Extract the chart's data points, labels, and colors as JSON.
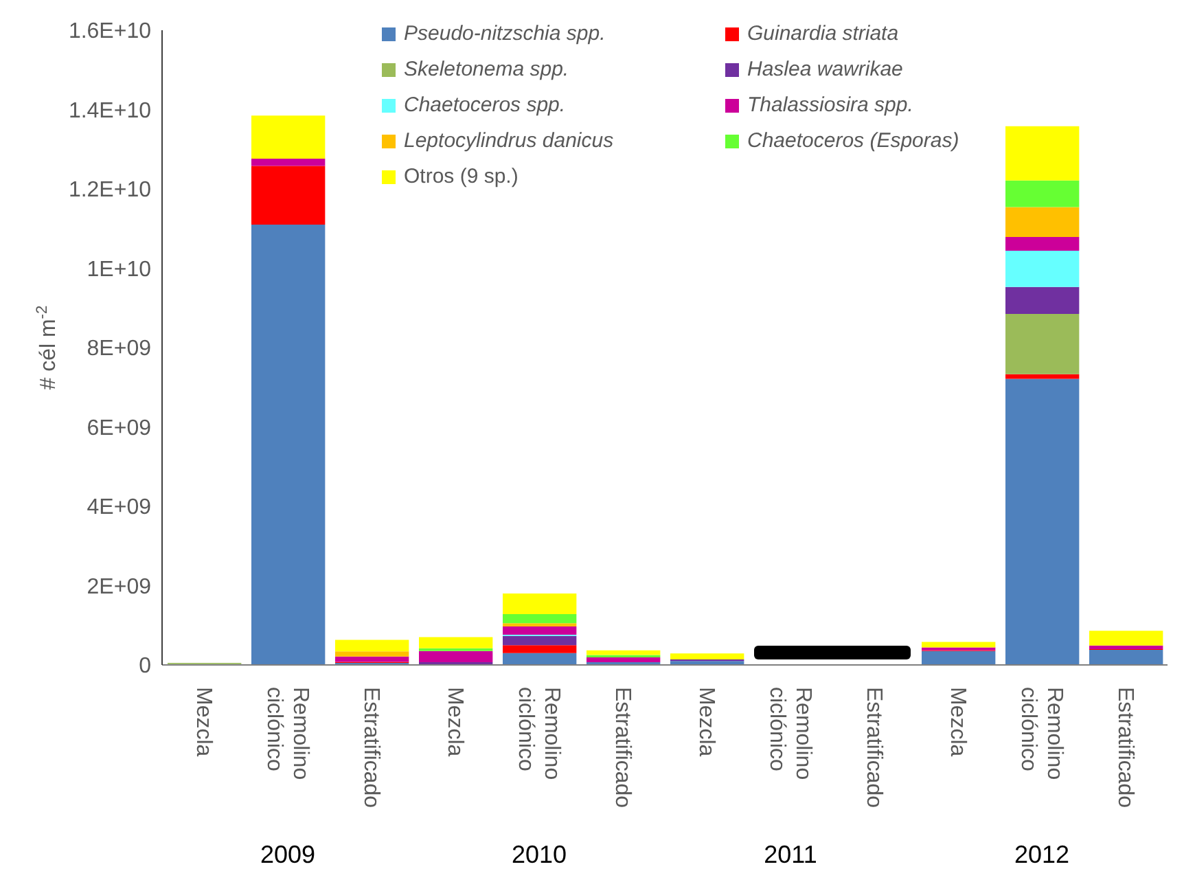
{
  "chart_data": {
    "type": "bar",
    "stacked": true,
    "ylabel": "# cél m$^{-2}$",
    "categories": [
      "Mezcla",
      "Remolino ciclónico",
      "Estratificado",
      "Mezcla",
      "Remolino ciclónico",
      "Estratificado",
      "Mezcla",
      "Remolino ciclónico",
      "Estratificado",
      "Mezcla",
      "Remolino ciclónico",
      "Estratificado"
    ],
    "annotations": [
      "2009",
      "2010",
      "2011",
      "2012"
    ],
    "ylim": [
      0,
      16000000000.0
    ],
    "yticks": [
      0,
      {
        "value": 2000000000.0,
        "label": "2E+09"
      },
      {
        "value": 4000000000.0,
        "label": "4E+09"
      },
      {
        "value": 6000000000.0,
        "label": "6E+09"
      },
      {
        "value": 8000000000.0,
        "label": "8E+09"
      },
      {
        "value": 10000000000.0,
        "label": "1E+10"
      },
      {
        "value": 12000000000.0,
        "label": "1.2E+10"
      },
      {
        "value": 14000000000.0,
        "label": "1.4E+10"
      },
      {
        "value": 16000000000.0,
        "label": "1.6E+10"
      }
    ],
    "grid": false,
    "legend": "top",
    "series": [
      {
        "name": "Pseudo-nitzschia spp.",
        "color": "#4f81bd",
        "values": [
          20000000.0,
          11100000000.0,
          50000000.0,
          0,
          300000000.0,
          70000000.0,
          100000000.0,
          null,
          null,
          350000000.0,
          7210000000.0,
          380000000.0
        ]
      },
      {
        "name": "Guinardia striata",
        "color": "#ff0000",
        "values": [
          0,
          1480000000.0,
          30000000.0,
          0,
          200000000.0,
          0,
          0,
          null,
          null,
          20000000.0,
          120000000.0,
          20000000.0
        ]
      },
      {
        "name": "Skeletonema spp.",
        "color": "#9bbb59",
        "values": [
          30000000.0,
          0,
          0,
          0,
          0,
          0,
          0,
          null,
          null,
          0,
          1520000000.0,
          0
        ]
      },
      {
        "name": "Haslea wawrikae",
        "color": "#7030a0",
        "values": [
          0,
          0,
          0,
          70000000.0,
          230000000.0,
          0,
          40000000.0,
          null,
          null,
          0,
          680000000.0,
          0
        ]
      },
      {
        "name": "Chaetoceros spp.",
        "color": "#66ffff",
        "values": [
          0,
          0,
          0,
          0,
          30000000.0,
          0,
          0,
          null,
          null,
          0,
          910000000.0,
          0
        ]
      },
      {
        "name": "Thalassiosira spp.",
        "color": "#cc0099",
        "values": [
          0,
          180000000.0,
          130000000.0,
          280000000.0,
          210000000.0,
          120000000.0,
          0,
          null,
          null,
          70000000.0,
          350000000.0,
          90000000.0
        ]
      },
      {
        "name": "Leptocylindrus danicus",
        "color": "#ffc000",
        "values": [
          0,
          0,
          130000000.0,
          0,
          80000000.0,
          0,
          0,
          null,
          null,
          0,
          750000000.0,
          0
        ]
      },
      {
        "name": "Chaetoceros (Esporas)",
        "color": "#66ff33",
        "values": [
          0,
          0,
          0,
          70000000.0,
          230000000.0,
          60000000.0,
          0,
          null,
          null,
          0,
          670000000.0,
          0
        ]
      },
      {
        "name": "Otros (9 sp.)",
        "color": "#ffff00",
        "values": [
          0,
          1090000000.0,
          290000000.0,
          280000000.0,
          520000000.0,
          120000000.0,
          150000000.0,
          null,
          null,
          140000000.0,
          1370000000.0,
          370000000.0
        ]
      }
    ]
  }
}
